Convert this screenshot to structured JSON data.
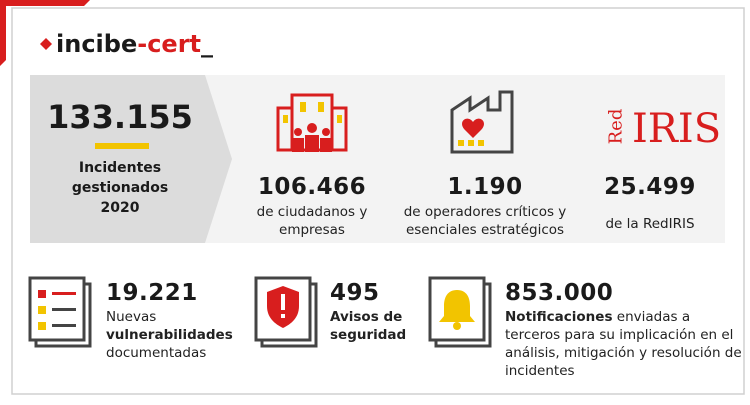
{
  "header": {
    "logo": {
      "name": "incibe",
      "suffix": "-cert",
      "cursor": "_"
    }
  },
  "main": {
    "value": "133.155",
    "label_lines": [
      "Incidentes",
      "gestionados",
      "2020"
    ]
  },
  "stats": [
    {
      "value": "106.466",
      "label": "de ciudadanos y empresas"
    },
    {
      "value": "1.190",
      "label": "de operadores críticos y esenciales estratégicos"
    },
    {
      "value": "25.499",
      "label": "de la RedIRIS",
      "logo": {
        "red": "Red",
        "iris": "IRIS"
      }
    }
  ],
  "items": [
    {
      "value": "19.221",
      "label": [
        {
          "text": "Nuevas ",
          "bold": false
        },
        {
          "text": "vulnerabilidades",
          "bold": true
        },
        {
          "text": " documentadas",
          "bold": false
        }
      ]
    },
    {
      "value": "495",
      "label": [
        {
          "text": "Avisos de seguridad",
          "bold": true
        }
      ]
    },
    {
      "value": "853.000",
      "label": [
        {
          "text": "Notificaciones",
          "bold": true
        },
        {
          "text": " enviadas a terceros para su implicación en el análisis, mitigación y resolución de incidentes",
          "bold": false
        }
      ]
    }
  ]
}
